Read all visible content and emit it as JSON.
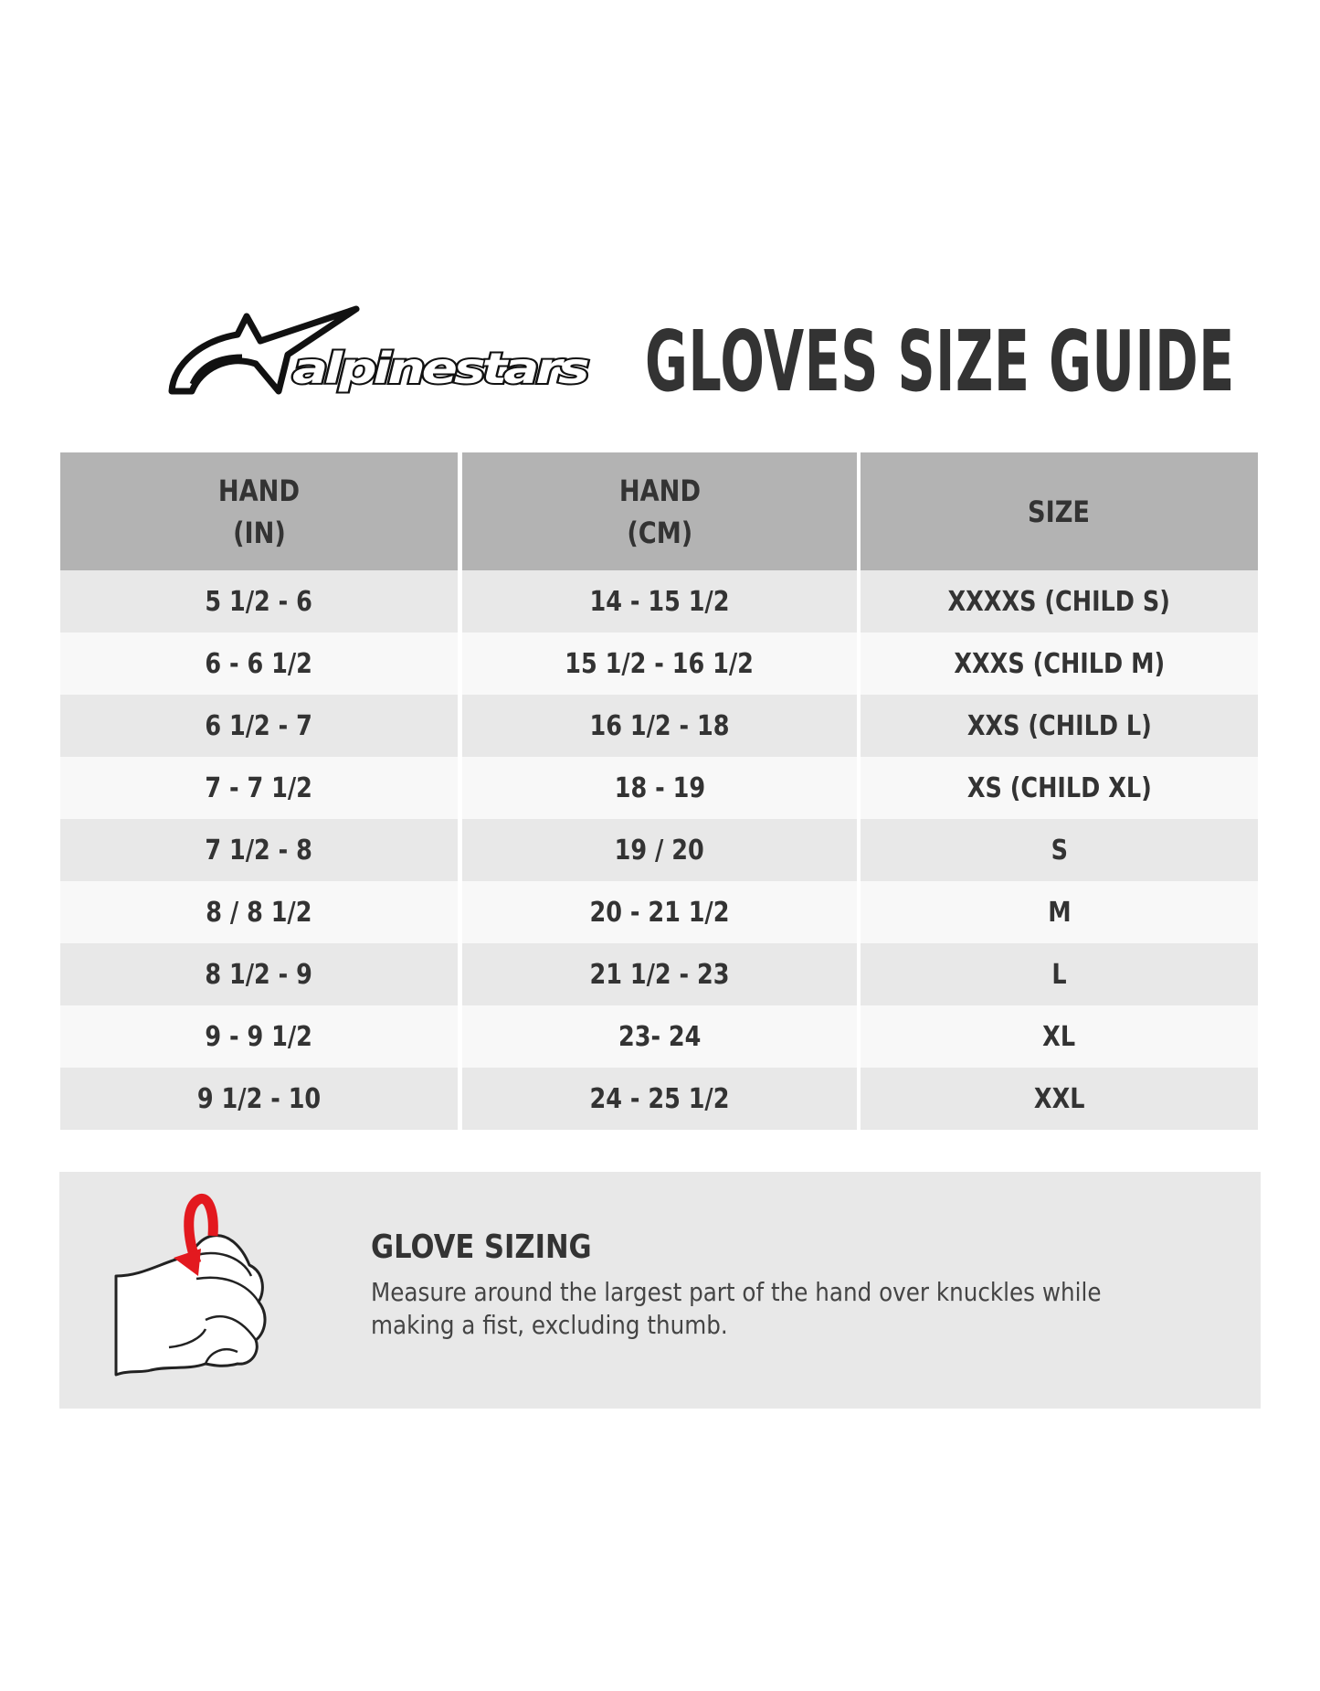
{
  "brand": {
    "logo_text": "alpinestars"
  },
  "title": "GLOVES SIZE GUIDE",
  "table": {
    "headers": [
      {
        "line1": "HAND",
        "line2": "(IN)"
      },
      {
        "line1": "HAND",
        "line2": "(CM)"
      },
      {
        "line1": "SIZE",
        "line2": ""
      }
    ],
    "rows": [
      [
        "5 1/2 - 6",
        "14 - 15 1/2",
        "XXXXS (CHILD S)"
      ],
      [
        "6 - 6 1/2",
        "15 1/2 - 16 1/2",
        "XXXS (CHILD M)"
      ],
      [
        "6 1/2 - 7",
        "16 1/2 - 18",
        "XXS (CHILD L)"
      ],
      [
        "7 - 7 1/2",
        "18 - 19",
        "XS (CHILD XL)"
      ],
      [
        "7 1/2 - 8",
        "19 / 20",
        "S"
      ],
      [
        "8 / 8 1/2",
        "20 - 21 1/2",
        "M"
      ],
      [
        "8 1/2 - 9",
        "21 1/2 - 23",
        "L"
      ],
      [
        "9 - 9 1/2",
        "23- 24",
        "XL"
      ],
      [
        "9 1/2 - 10",
        "24 - 25 1/2",
        "XXL"
      ]
    ]
  },
  "info": {
    "icon": "hand-fist-measure-icon",
    "title": "GLOVE SIZING",
    "description": "Measure around the largest part of the hand over knuckles while making a fist, excluding thumb."
  },
  "colors": {
    "header_bg": "#b3b3b3",
    "row_odd": "#e8e8e8",
    "row_even": "#f8f8f8",
    "arrow": "#e3191f",
    "text": "#333333"
  }
}
